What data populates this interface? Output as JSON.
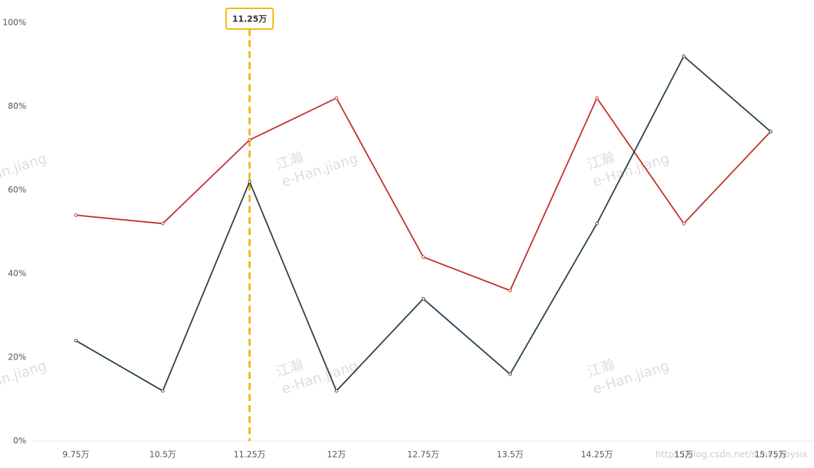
{
  "chart_data": {
    "type": "line",
    "categories": [
      "9.75万",
      "10.5万",
      "11.25万",
      "12万",
      "12.75万",
      "13.5万",
      "14.25万",
      "15万",
      "15.75万"
    ],
    "series": [
      {
        "color": "#c23531",
        "values": [
          54,
          52,
          72,
          82,
          44,
          36,
          82,
          52,
          74
        ]
      },
      {
        "color": "#2f4554",
        "values": [
          24,
          12,
          62,
          12,
          34,
          16,
          52,
          92,
          74
        ]
      }
    ],
    "ylim": [
      0,
      100
    ],
    "yticks": [
      {
        "value": 0,
        "label": "0%"
      },
      {
        "value": 20,
        "label": "20%"
      },
      {
        "value": 40,
        "label": "40%"
      },
      {
        "value": 60,
        "label": "60%"
      },
      {
        "value": 80,
        "label": "80%"
      },
      {
        "value": 100,
        "label": "100%"
      }
    ],
    "grid": false,
    "marker_label": "11.25万",
    "marker_color": "#f0b400",
    "watermark": [
      "江瀚",
      "e-Han.jiang"
    ],
    "credit": "https://blog.csdn.net/sunnyboysix"
  }
}
